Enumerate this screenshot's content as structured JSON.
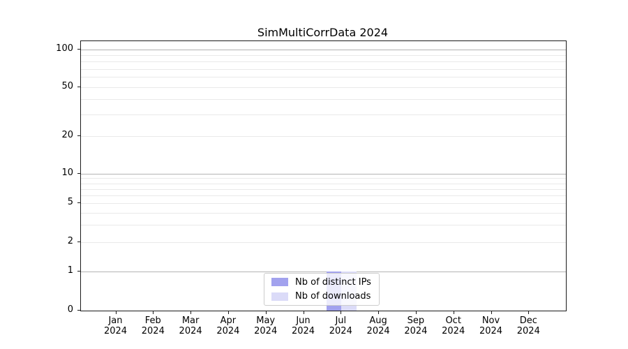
{
  "title": "SimMultiCorrData 2024",
  "chart_data": {
    "type": "bar",
    "y_scale": "symlog",
    "title": "SimMultiCorrData 2024",
    "categories": [
      "Jan",
      "Feb",
      "Mar",
      "Apr",
      "May",
      "Jun",
      "Jul",
      "Aug",
      "Sep",
      "Oct",
      "Nov",
      "Dec"
    ],
    "category_year": "2024",
    "series": [
      {
        "name": "Nb of distinct IPs",
        "color": "#a2a2ee",
        "values": [
          0,
          0,
          0,
          0,
          0,
          0,
          1,
          0,
          0,
          0,
          0,
          0
        ]
      },
      {
        "name": "Nb of downloads",
        "color": "#dbdbf8",
        "values": [
          0,
          0,
          0,
          0,
          0,
          0,
          1,
          0,
          0,
          0,
          0,
          0
        ]
      }
    ],
    "y_ticks": [
      0,
      1,
      2,
      5,
      10,
      20,
      50,
      100
    ],
    "ylim": [
      0,
      117
    ],
    "grid": {
      "major_values": [
        1,
        10,
        100
      ],
      "minor_values": [
        2,
        3,
        4,
        5,
        6,
        7,
        8,
        9,
        20,
        30,
        40,
        50,
        60,
        70,
        80,
        90
      ],
      "major_color": "#b3b3b3",
      "minor_color": "#e9e9e9"
    },
    "legend": {
      "position": "lower center"
    },
    "spine_color": "#1a1a1a"
  }
}
